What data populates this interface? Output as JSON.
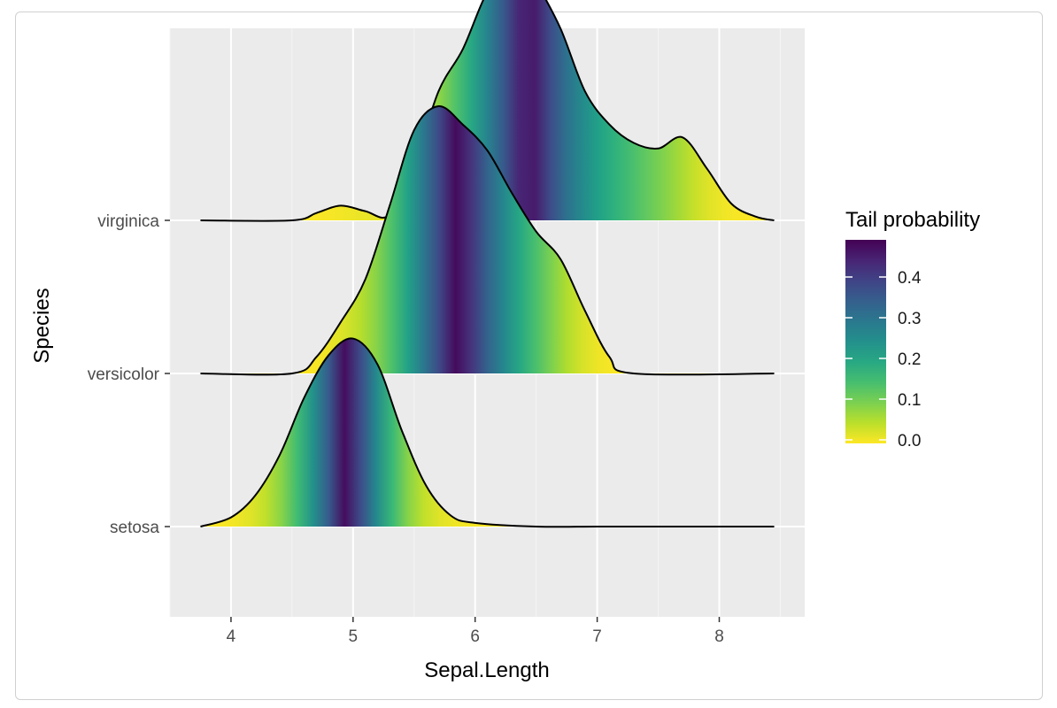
{
  "chart_data": {
    "type": "ridgeline",
    "xlabel": "Sepal.Length",
    "ylabel": "Species",
    "xlim": [
      3.5,
      8.7
    ],
    "x_ticks": [
      4,
      5,
      6,
      7,
      8
    ],
    "fill": "tail probability (viridis, reversed)",
    "legend": {
      "title": "Tail probability",
      "position": "right",
      "ticks": [
        "0.0",
        "0.1",
        "0.2",
        "0.3",
        "0.4"
      ],
      "range": [
        0,
        0.5
      ]
    },
    "series": [
      {
        "name": "setosa",
        "median": 5.0,
        "x": [
          3.75,
          4.0,
          4.2,
          4.4,
          4.6,
          4.8,
          5.0,
          5.2,
          5.4,
          5.6,
          5.8,
          6.0,
          6.5,
          7.0,
          7.5,
          8.0,
          8.45
        ],
        "height": [
          0.0,
          0.05,
          0.17,
          0.39,
          0.7,
          0.93,
          1.02,
          0.88,
          0.52,
          0.22,
          0.06,
          0.02,
          0.0,
          0.0,
          0.0,
          0.0,
          0.0
        ]
      },
      {
        "name": "versicolor",
        "median": 5.9,
        "x": [
          3.75,
          4.5,
          4.7,
          4.9,
          5.1,
          5.3,
          5.5,
          5.7,
          5.9,
          6.1,
          6.3,
          6.5,
          6.7,
          6.9,
          7.1,
          7.3,
          8.45
        ],
        "height": [
          0.0,
          0.0,
          0.09,
          0.28,
          0.51,
          0.91,
          1.32,
          1.45,
          1.35,
          1.21,
          0.98,
          0.77,
          0.62,
          0.34,
          0.09,
          0.0,
          0.0
        ]
      },
      {
        "name": "virginica",
        "median": 6.5,
        "x": [
          3.75,
          4.5,
          4.7,
          4.9,
          5.1,
          5.3,
          5.5,
          5.7,
          5.9,
          6.1,
          6.3,
          6.4,
          6.5,
          6.7,
          6.9,
          7.1,
          7.3,
          7.5,
          7.7,
          7.9,
          8.1,
          8.3,
          8.45
        ],
        "height": [
          0.0,
          0.0,
          0.04,
          0.08,
          0.05,
          0.03,
          0.3,
          0.7,
          0.93,
          1.24,
          1.39,
          1.38,
          1.29,
          1.04,
          0.7,
          0.52,
          0.42,
          0.39,
          0.45,
          0.28,
          0.09,
          0.02,
          0.0
        ]
      }
    ]
  }
}
